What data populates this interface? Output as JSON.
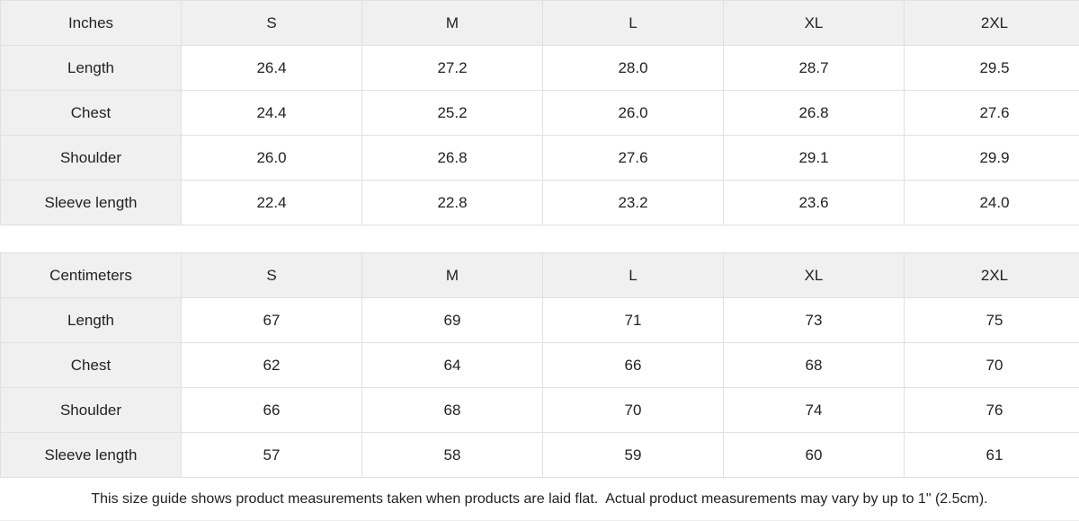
{
  "size_guide": {
    "tables": [
      {
        "unit_label": "Inches",
        "columns": [
          "S",
          "M",
          "L",
          "XL",
          "2XL"
        ],
        "rows": [
          {
            "label": "Length",
            "values": [
              "26.4",
              "27.2",
              "28.0",
              "28.7",
              "29.5"
            ]
          },
          {
            "label": "Chest",
            "values": [
              "24.4",
              "25.2",
              "26.0",
              "26.8",
              "27.6"
            ]
          },
          {
            "label": "Shoulder",
            "values": [
              "26.0",
              "26.8",
              "27.6",
              "29.1",
              "29.9"
            ]
          },
          {
            "label": "Sleeve length",
            "values": [
              "22.4",
              "22.8",
              "23.2",
              "23.6",
              "24.0"
            ]
          }
        ]
      },
      {
        "unit_label": "Centimeters",
        "columns": [
          "S",
          "M",
          "L",
          "XL",
          "2XL"
        ],
        "rows": [
          {
            "label": "Length",
            "values": [
              "67",
              "69",
              "71",
              "73",
              "75"
            ]
          },
          {
            "label": "Chest",
            "values": [
              "62",
              "64",
              "66",
              "68",
              "70"
            ]
          },
          {
            "label": "Shoulder",
            "values": [
              "66",
              "68",
              "70",
              "74",
              "76"
            ]
          },
          {
            "label": "Sleeve length",
            "values": [
              "57",
              "58",
              "59",
              "60",
              "61"
            ]
          }
        ]
      }
    ],
    "note": "This size guide shows product measurements taken when products are laid flat.  Actual product measurements may vary by up to 1\" (2.5cm)."
  },
  "colors": {
    "header_bg": "#f0f0f0",
    "cell_bg": "#ffffff",
    "border": "#e0e0e0",
    "text": "#222222"
  }
}
